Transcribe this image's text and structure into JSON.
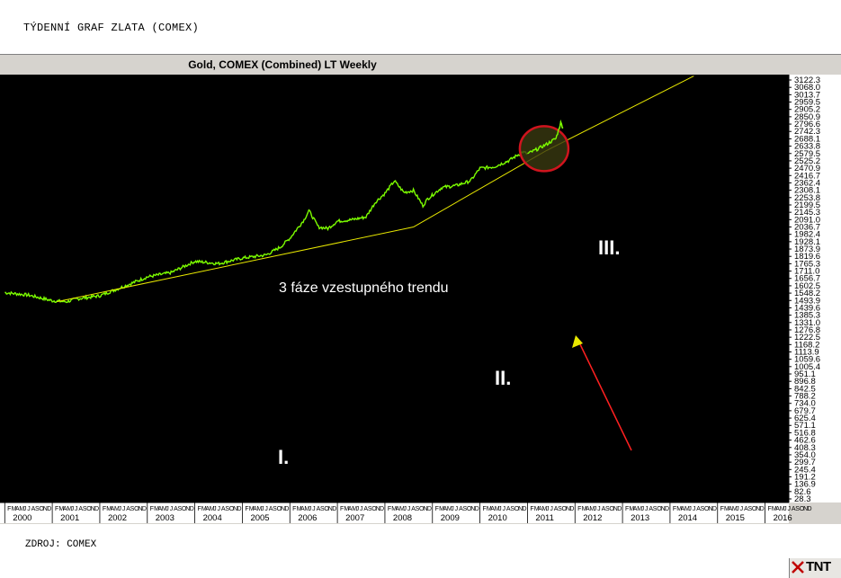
{
  "page": {
    "title": "TÝDENNÍ GRAF ZLATA (COMEX)",
    "source": "ZDROJ: COMEX"
  },
  "chart_data": {
    "type": "line",
    "title": "Gold, COMEX (Combined) LT Weekly",
    "x_range": [
      1999.9,
      2016.5
    ],
    "ylim": [
      28.3,
      3122.3
    ],
    "y_scale": "log",
    "y_tick_labels": [
      "3122.3",
      "3068.0",
      "3013.7",
      "2959.5",
      "2905.2",
      "2850.9",
      "2796.6",
      "2742.3",
      "2688.1",
      "2633.8",
      "2579.5",
      "2525.2",
      "2470.9",
      "2416.7",
      "2362.4",
      "2308.1",
      "2253.8",
      "2199.5",
      "2145.3",
      "2091.0",
      "2036.7",
      "1982.4",
      "1928.1",
      "1873.9",
      "1819.6",
      "1765.3",
      "1711.0",
      "1656.7",
      "1602.5",
      "1548.2",
      "1493.9",
      "1439.6",
      "1385.3",
      "1331.0",
      "1276.8",
      "1222.5",
      "1168.2",
      "1113.9",
      "1059.6",
      "1005.4",
      "951.1",
      "896.8",
      "842.5",
      "788.2",
      "734.0",
      "679.7",
      "625.4",
      "571.1",
      "516.8",
      "462.6",
      "408.3",
      "354.0",
      "299.7",
      "245.4",
      "191.2",
      "136.9",
      "82.6",
      "28.3"
    ],
    "x_year_labels": [
      "2000",
      "2001",
      "2002",
      "2003",
      "2004",
      "2005",
      "2006",
      "2007",
      "2008",
      "2009",
      "2010",
      "2011",
      "2012",
      "2013",
      "2014",
      "2015",
      "2016"
    ],
    "month_labels": "FMAMJJASOND",
    "series": [
      {
        "values_x": [
          2000.0,
          2000.5,
          2001.0,
          2001.3,
          2001.5,
          2002.0,
          2002.5,
          2003.0,
          2003.5,
          2004.0,
          2004.5,
          2005.0,
          2005.5,
          2005.8,
          2006.0,
          2006.3,
          2006.4,
          2006.6,
          2006.8,
          2007.0,
          2007.3,
          2007.6,
          2007.8,
          2008.0,
          2008.2,
          2008.4,
          2008.6,
          2008.8,
          2008.9,
          2009.2,
          2009.5,
          2009.8,
          2010.0,
          2010.3,
          2010.6,
          2010.9,
          2011.0,
          2011.2,
          2011.4,
          2011.5,
          2011.6,
          2011.65,
          2011.7,
          2011.75
        ],
        "values_y": [
          290,
          282,
          265,
          262,
          270,
          280,
          310,
          345,
          362,
          410,
          400,
          425,
          440,
          480,
          530,
          650,
          720,
          600,
          590,
          640,
          650,
          670,
          790,
          870,
          1000,
          880,
          900,
          760,
          820,
          930,
          950,
          1000,
          1150,
          1170,
          1250,
          1380,
          1350,
          1420,
          1500,
          1550,
          1600,
          1750,
          1900,
          1800
        ]
      }
    ],
    "trendlines": [
      {
        "name": "I.",
        "from": [
          2001.1,
          262
        ],
        "to": [
          2008.6,
          600
        ]
      },
      {
        "name": "II.",
        "from": [
          2008.6,
          600
        ],
        "to": [
          2011.4,
          1400
        ]
      },
      {
        "name": "III.",
        "from": [
          2011.4,
          1400
        ],
        "to": [
          2014.5,
          3200
        ]
      }
    ],
    "annotations": {
      "phase_text": "3 fáze vzestupného trendu",
      "label_1": "I.",
      "label_2": "II.",
      "label_3": "III."
    },
    "colors": {
      "background": "#000000",
      "price_line": "#7cfc00",
      "trendline": "#e8e800",
      "circle": "#d0141e",
      "arrow": "#ff2020",
      "text": "#ffffff",
      "circle_fill": "#3a3a10"
    }
  },
  "logo": {
    "text": "TNT"
  }
}
